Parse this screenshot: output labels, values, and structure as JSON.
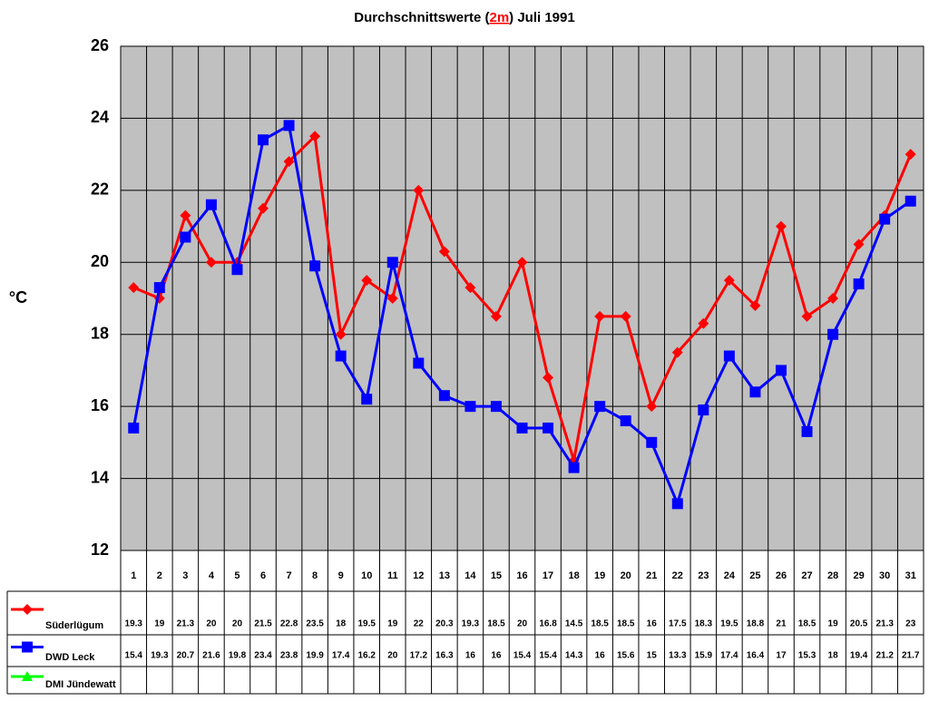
{
  "chart_data": {
    "type": "line",
    "title": [
      "Durchschnittswerte (",
      "2m",
      ") Juli 1991"
    ],
    "y_label": "°C",
    "categories": [
      "1",
      "2",
      "3",
      "4",
      "5",
      "6",
      "7",
      "8",
      "9",
      "10",
      "11",
      "12",
      "13",
      "14",
      "15",
      "16",
      "17",
      "18",
      "19",
      "20",
      "21",
      "22",
      "23",
      "24",
      "25",
      "26",
      "27",
      "28",
      "29",
      "30",
      "31"
    ],
    "series": [
      {
        "name": "Süderlügum",
        "color": "#ff0000",
        "marker": "diamond",
        "values": [
          19.3,
          19,
          21.3,
          20,
          20,
          21.5,
          22.8,
          23.5,
          18,
          19.5,
          19,
          22,
          20.3,
          19.3,
          18.5,
          20,
          16.8,
          14.5,
          18.5,
          18.5,
          16,
          17.5,
          18.3,
          19.5,
          18.8,
          21,
          18.5,
          19,
          20.5,
          21.3,
          23
        ]
      },
      {
        "name": "DWD Leck",
        "color": "#0000ff",
        "marker": "square",
        "values": [
          15.4,
          19.3,
          20.7,
          21.6,
          19.8,
          23.4,
          23.8,
          19.9,
          17.4,
          16.2,
          20,
          17.2,
          16.3,
          16,
          16,
          15.4,
          15.4,
          14.3,
          16,
          15.6,
          15,
          13.3,
          15.9,
          17.4,
          16.4,
          17,
          15.3,
          18,
          19.4,
          21.2,
          21.7
        ]
      },
      {
        "name": "DMI Jündewatt",
        "color": "#00ff00",
        "marker": "triangle",
        "values": [
          null,
          null,
          null,
          null,
          null,
          null,
          null,
          null,
          null,
          null,
          null,
          null,
          null,
          null,
          null,
          null,
          null,
          null,
          null,
          null,
          null,
          null,
          null,
          null,
          null,
          null,
          null,
          null,
          null,
          null,
          null
        ]
      }
    ],
    "ylim": [
      12,
      26
    ],
    "yticks": [
      12,
      14,
      16,
      18,
      20,
      22,
      24,
      26
    ],
    "grid": true
  }
}
